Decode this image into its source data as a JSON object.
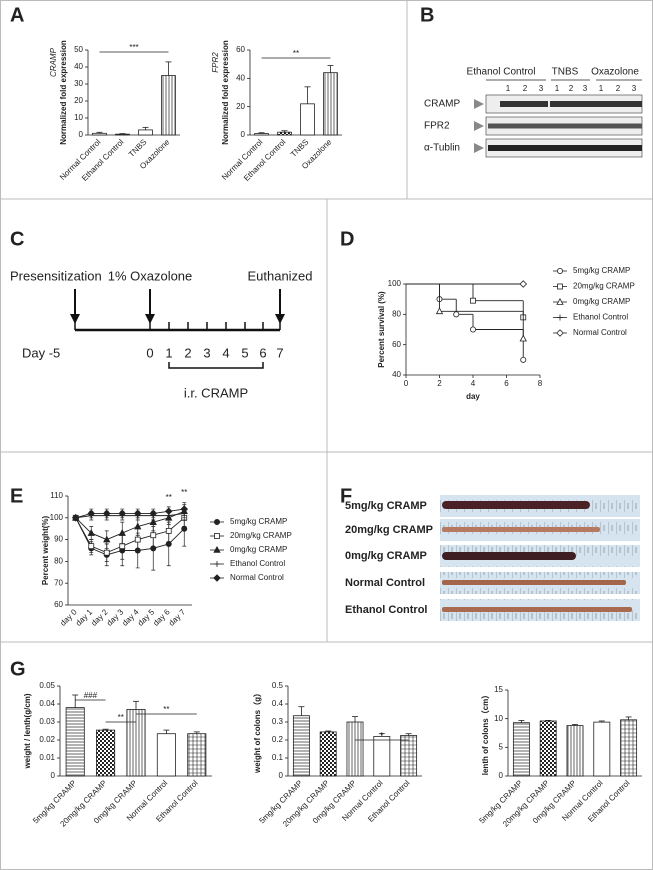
{
  "panel_labels": [
    "A",
    "B",
    "C",
    "D",
    "E",
    "F",
    "G"
  ],
  "blot": {
    "groups": [
      "Ethanol Control",
      "TNBS",
      "Oxazolone"
    ],
    "lanes": [
      "1",
      "2",
      "3"
    ],
    "rows": [
      "CRAMP",
      "FPR2",
      "α-Tublin"
    ]
  },
  "timeline": {
    "events": [
      "Presensitization",
      "1% Oxazolone",
      "Euthanized"
    ],
    "days": [
      "Day -5",
      "0",
      "1",
      "2",
      "3",
      "4",
      "5",
      "6",
      "7"
    ],
    "treatment": "i.r. CRAMP"
  },
  "photo": {
    "rows": [
      "5mg/kg  CRAMP",
      "20mg/kg CRAMP",
      "0mg/kg CRAMP",
      "Normal Control",
      "Ethanol Control"
    ]
  },
  "chart_data": [
    {
      "type": "bar",
      "gene": "CRAMP",
      "ylabel": "Normalized fold expression",
      "color": "#222222",
      "categories": [
        "Normal Control",
        "Ethanol Control",
        "TNBS",
        "Oxazolone"
      ],
      "values": [
        1,
        0.5,
        3,
        35
      ],
      "errors": [
        0.6,
        0.3,
        1.5,
        8
      ],
      "ylim": [
        0,
        50
      ],
      "yticks": [
        0,
        10,
        20,
        30,
        40,
        50
      ],
      "hatches": [
        "hlines",
        "checker",
        "none",
        "vlines"
      ],
      "annotations": [
        "***"
      ]
    },
    {
      "type": "bar",
      "gene": "FPR2",
      "ylabel": "Normalized fold expression",
      "color": "#222222",
      "categories": [
        "Normal Control",
        "Ethanol Control",
        "TNBS",
        "Oxazolone"
      ],
      "values": [
        1,
        2,
        22,
        44
      ],
      "errors": [
        0.6,
        1,
        12,
        5
      ],
      "ylim": [
        0,
        60
      ],
      "yticks": [
        0,
        20,
        40,
        60
      ],
      "hatches": [
        "hlines",
        "checker",
        "none",
        "vlines"
      ],
      "annotations": [
        "**"
      ]
    },
    {
      "type": "survival",
      "ylabel": "Percent survival (%)",
      "xlabel": "day",
      "color": "#222222",
      "xlim": [
        0,
        8
      ],
      "xticks": [
        0,
        2,
        4,
        6,
        8
      ],
      "ylim": [
        40,
        100
      ],
      "yticks": [
        40,
        60,
        80,
        100
      ],
      "series": [
        {
          "name": "5mg/kg CRAMP",
          "marker": "circle",
          "filled": false,
          "x": [
            0,
            2,
            3,
            4,
            7
          ],
          "values": [
            100,
            90,
            80,
            70,
            50
          ]
        },
        {
          "name": "20mg/kg CRAMP",
          "marker": "square",
          "filled": false,
          "x": [
            0,
            4,
            7
          ],
          "values": [
            100,
            89,
            78
          ]
        },
        {
          "name": "0mg/kg CRAMP",
          "marker": "triangle",
          "filled": false,
          "x": [
            0,
            2,
            7
          ],
          "values": [
            100,
            82,
            64
          ]
        },
        {
          "name": "Ethanol Control",
          "marker": "plus",
          "filled": false,
          "x": [
            0,
            7
          ],
          "values": [
            100,
            100
          ]
        },
        {
          "name": "Normal Control",
          "marker": "diamond",
          "filled": false,
          "x": [
            0,
            7
          ],
          "values": [
            100,
            100
          ]
        }
      ]
    },
    {
      "type": "line",
      "ylabel": "Percent weight(%)",
      "color": "#222222",
      "categories": [
        "day 0",
        "day 1",
        "day 2",
        "day 3",
        "day 4",
        "day 5",
        "day 6",
        "day 7"
      ],
      "ylim": [
        60,
        110
      ],
      "yticks": [
        60,
        70,
        80,
        90,
        100,
        110
      ],
      "annotations": [
        "**",
        "**"
      ],
      "series": [
        {
          "name": "5mg/kg CRAMP",
          "marker": "circle",
          "filled": true,
          "values": [
            100,
            86,
            83,
            85,
            85,
            86,
            88,
            95
          ],
          "errors": [
            0,
            3,
            5,
            7,
            8,
            10,
            10,
            8
          ]
        },
        {
          "name": "20mg/kg CRAMP",
          "marker": "square",
          "filled": false,
          "values": [
            100,
            87,
            84,
            87,
            90,
            92,
            94,
            100
          ],
          "errors": [
            0,
            3,
            4,
            6,
            6,
            6,
            5,
            4
          ]
        },
        {
          "name": "0mg/kg CRAMP",
          "marker": "triangle",
          "filled": true,
          "values": [
            100,
            93,
            90,
            93,
            96,
            98,
            100,
            103
          ],
          "errors": [
            0,
            3,
            4,
            5,
            4,
            4,
            3,
            4
          ]
        },
        {
          "name": "Ethanol Control",
          "marker": "plus",
          "filled": false,
          "values": [
            100,
            101,
            101,
            101,
            101,
            101,
            101,
            102
          ],
          "errors": [
            0,
            2,
            2,
            2,
            2,
            2,
            2,
            2
          ]
        },
        {
          "name": "Normal Control",
          "marker": "diamond",
          "filled": true,
          "values": [
            100,
            102,
            102,
            102,
            102,
            102,
            103,
            104
          ],
          "errors": [
            0,
            2,
            2,
            2,
            2,
            2,
            2,
            2
          ]
        }
      ]
    },
    {
      "type": "bar",
      "ylabel": "weight / lenth(g/cm)",
      "color": "#222222",
      "categories": [
        "5mg/kg CRAMP",
        "20mg/kg CRAMP",
        "0mg/kg CRAMP",
        "Normal Control",
        "Ethanol Control"
      ],
      "values": [
        0.038,
        0.0255,
        0.037,
        0.0235,
        0.0235
      ],
      "errors": [
        0.007,
        0.0005,
        0.0045,
        0.002,
        0.001
      ],
      "ylim": [
        0,
        0.05
      ],
      "yticks": [
        0,
        0.01,
        0.02,
        0.03,
        0.04,
        0.05
      ],
      "hatches": [
        "hlines",
        "checker",
        "vlines",
        "none",
        "grid"
      ],
      "annotations": [
        "###",
        "**",
        "**"
      ]
    },
    {
      "type": "bar",
      "ylabel": "weight of colons（g）",
      "color": "#222222",
      "categories": [
        "5mg/kg CRAMP",
        "20mg/kg CRAMP",
        "0mg/kg CRAMP",
        "Normal Control",
        "Ethanol Control"
      ],
      "values": [
        0.335,
        0.245,
        0.3,
        0.22,
        0.225
      ],
      "errors": [
        0.05,
        0.005,
        0.03,
        0.015,
        0.01
      ],
      "ylim": [
        0,
        0.5
      ],
      "yticks": [
        0,
        0.1,
        0.2,
        0.3,
        0.4,
        0.5
      ],
      "hatches": [
        "hlines",
        "checker",
        "vlines",
        "none",
        "grid"
      ],
      "annotations": [
        "*"
      ]
    },
    {
      "type": "bar",
      "ylabel": "lenth of colons（cm）",
      "color": "#222222",
      "categories": [
        "5mg/kg CRAMP",
        "20mg/kg CRAMP",
        "0mg/kg CRAMP",
        "Normal Control",
        "Ethanol Control"
      ],
      "values": [
        9.3,
        9.6,
        8.8,
        9.4,
        9.8
      ],
      "errors": [
        0.4,
        0.1,
        0.2,
        0.2,
        0.5
      ],
      "ylim": [
        0,
        15
      ],
      "yticks": [
        0,
        5,
        10,
        15
      ],
      "hatches": [
        "hlines",
        "checker",
        "vlines",
        "none",
        "grid"
      ],
      "annotations": []
    }
  ]
}
